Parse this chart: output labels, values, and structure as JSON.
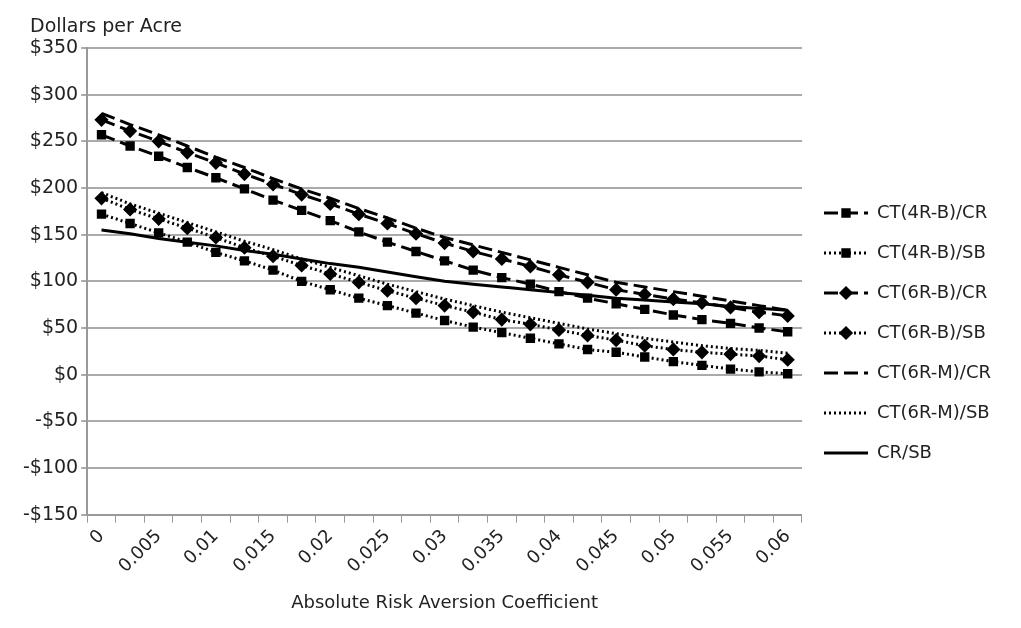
{
  "chart_data": {
    "type": "line",
    "xlabel": "Absolute Risk Aversion Coefficient",
    "ylabel": "Dollars per Acre",
    "categories": [
      "0",
      null,
      "0.005",
      null,
      "0.01",
      null,
      "0.015",
      null,
      "0.02",
      null,
      "0.025",
      null,
      "0.03",
      null,
      "0.035",
      null,
      "0.04",
      null,
      "0.045",
      null,
      "0.05",
      null,
      "0.055",
      null,
      "0.06"
    ],
    "ylim": [
      -150,
      350
    ],
    "yticks": [
      {
        "value": -150,
        "label": "-$150"
      },
      {
        "value": -100,
        "label": "-$100"
      },
      {
        "value": -50,
        "label": "-$50"
      },
      {
        "value": 0,
        "label": "$0"
      },
      {
        "value": 50,
        "label": "$50"
      },
      {
        "value": 100,
        "label": "$100"
      },
      {
        "value": 150,
        "label": "$150"
      },
      {
        "value": 200,
        "label": "$200"
      },
      {
        "value": 250,
        "label": "$250"
      },
      {
        "value": 300,
        "label": "$300"
      },
      {
        "value": 350,
        "label": "$350"
      }
    ],
    "grid": "y",
    "legend": "right",
    "series": [
      {
        "name": "CT(4R-B)/CR",
        "color": "#000000",
        "marker": "square",
        "line_style": "dashed",
        "values": [
          257,
          245,
          234,
          222,
          211,
          199,
          187,
          176,
          165,
          153,
          142,
          132,
          122,
          112,
          104,
          97,
          89,
          82,
          76,
          70,
          64,
          59,
          55,
          50,
          46
        ]
      },
      {
        "name": "CT(4R-B)/SB",
        "color": "#000000",
        "marker": "square",
        "line_style": "dotted",
        "values": [
          172,
          162,
          152,
          142,
          131,
          122,
          112,
          100,
          91,
          82,
          74,
          66,
          58,
          51,
          45,
          39,
          33,
          27,
          24,
          19,
          14,
          10,
          6,
          3,
          1
        ]
      },
      {
        "name": "CT(6R-B)/CR",
        "color": "#000000",
        "marker": "diamond",
        "line_style": "dashed",
        "values": [
          273,
          261,
          250,
          238,
          227,
          215,
          204,
          193,
          183,
          172,
          162,
          151,
          141,
          132,
          124,
          116,
          107,
          99,
          91,
          86,
          81,
          77,
          72,
          67,
          63
        ]
      },
      {
        "name": "CT(6R-B)/SB",
        "color": "#000000",
        "marker": "diamond",
        "line_style": "dotted",
        "values": [
          189,
          177,
          167,
          157,
          147,
          136,
          127,
          117,
          108,
          99,
          90,
          82,
          74,
          67,
          59,
          54,
          48,
          42,
          37,
          31,
          27,
          24,
          22,
          20,
          16
        ]
      },
      {
        "name": "CT(6R-M)/CR",
        "color": "#000000",
        "marker": "none",
        "line_style": "dashed",
        "values": [
          280,
          268,
          257,
          245,
          233,
          222,
          210,
          199,
          189,
          178,
          168,
          157,
          147,
          139,
          131,
          123,
          115,
          107,
          99,
          94,
          89,
          84,
          79,
          74,
          69
        ]
      },
      {
        "name": "CT(6R-M)/SB",
        "color": "#000000",
        "marker": "none",
        "line_style": "dotted",
        "values": [
          195,
          183,
          173,
          163,
          153,
          143,
          134,
          124,
          115,
          106,
          97,
          89,
          81,
          74,
          67,
          61,
          55,
          49,
          44,
          39,
          35,
          31,
          28,
          26,
          23
        ]
      },
      {
        "name": "CR/SB",
        "color": "#000000",
        "marker": "none",
        "line_style": "solid",
        "values": [
          155,
          151,
          146,
          142,
          138,
          133,
          129,
          124,
          119,
          115,
          110,
          105,
          100,
          97,
          94,
          91,
          88,
          85,
          82,
          80,
          78,
          76,
          73,
          71,
          69
        ]
      }
    ]
  }
}
